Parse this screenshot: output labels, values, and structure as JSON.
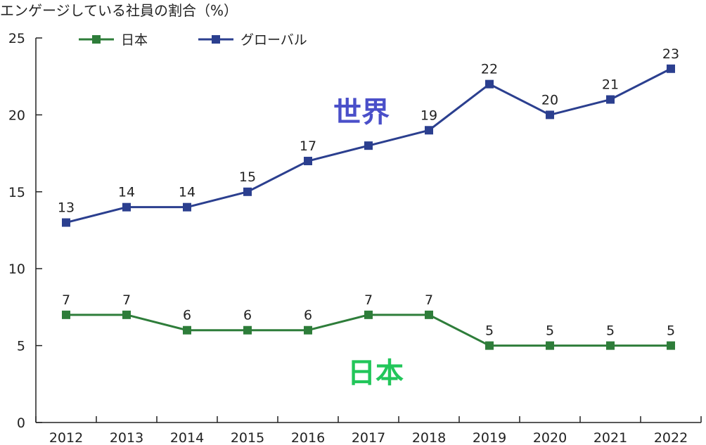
{
  "chart_data": {
    "type": "line",
    "title": "エンゲージしている社員の割合（%）",
    "x": [
      "2012",
      "2013",
      "2014",
      "2015",
      "2016",
      "2017",
      "2018",
      "2019",
      "2020",
      "2021",
      "2022"
    ],
    "ylim": [
      0,
      25
    ],
    "yticks": [
      0,
      5,
      10,
      15,
      20,
      25
    ],
    "grid": false,
    "legend": "top-left",
    "series": [
      {
        "name": "日本",
        "color": "#2e7d3a",
        "values": [
          7,
          7,
          6,
          6,
          6,
          7,
          7,
          5,
          5,
          5,
          5
        ]
      },
      {
        "name": "グローバル",
        "color": "#2b3f8f",
        "values": [
          13,
          14,
          14,
          15,
          17,
          18,
          19,
          22,
          20,
          21,
          23
        ],
        "labels": [
          "13",
          "14",
          "14",
          "15",
          "17",
          "",
          "19",
          "22",
          "20",
          "21",
          "23"
        ]
      }
    ],
    "annotations": [
      {
        "text": "世界",
        "color": "#4a4fc9"
      },
      {
        "text": "日本",
        "color": "#22c65a"
      }
    ]
  }
}
